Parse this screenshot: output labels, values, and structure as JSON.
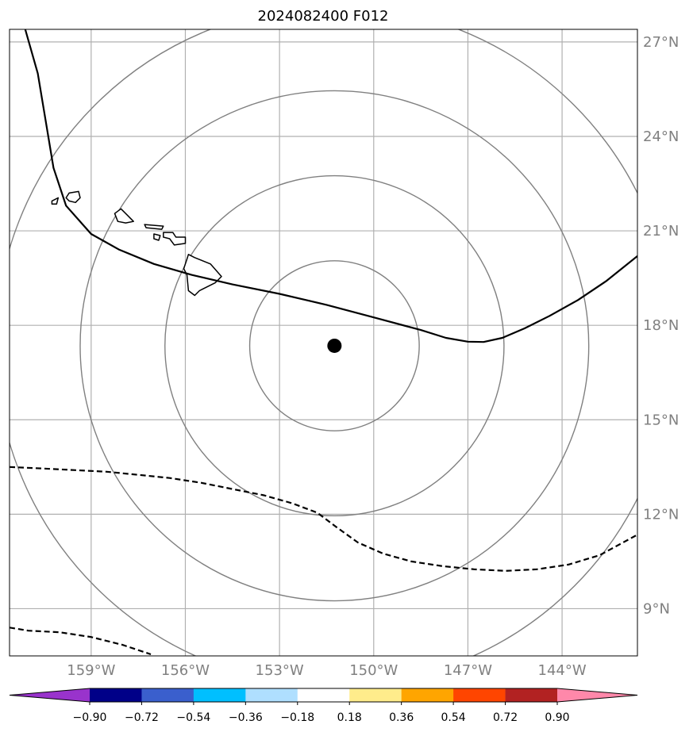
{
  "title": "2024082400 F012",
  "map": {
    "lon_range": [
      -161.6,
      -141.6
    ],
    "lat_range": [
      7.5,
      27.4
    ],
    "lat_labels": [
      "27°N",
      "24°N",
      "21°N",
      "18°N",
      "15°N",
      "12°N",
      "9°N"
    ],
    "lat_values": [
      27,
      24,
      21,
      18,
      15,
      12,
      9
    ],
    "lon_labels": [
      "159°W",
      "156°W",
      "153°W",
      "150°W",
      "147°W",
      "144°W"
    ],
    "lon_values": [
      -159,
      -156,
      -153,
      -150,
      -147,
      -144
    ],
    "storm_center": {
      "lon": -151.25,
      "lat": 17.35
    },
    "range_ring_radii_deg": [
      2.7,
      5.4,
      8.1,
      10.8
    ],
    "colors": {
      "grid": "#b0b0b0",
      "rings": "#808080",
      "coastline": "#000000",
      "contour": "#000000",
      "storm_marker": "#000000"
    },
    "islands": [
      {
        "name": "Niihau",
        "pts": [
          [
            -160.25,
            21.95
          ],
          [
            -160.05,
            22.05
          ],
          [
            -160.1,
            21.85
          ],
          [
            -160.25,
            21.85
          ]
        ]
      },
      {
        "name": "Kauai",
        "pts": [
          [
            -159.7,
            22.2
          ],
          [
            -159.4,
            22.25
          ],
          [
            -159.35,
            22.05
          ],
          [
            -159.5,
            21.9
          ],
          [
            -159.7,
            21.95
          ],
          [
            -159.8,
            22.05
          ]
        ]
      },
      {
        "name": "Oahu",
        "pts": [
          [
            -158.25,
            21.55
          ],
          [
            -158.05,
            21.7
          ],
          [
            -157.85,
            21.5
          ],
          [
            -157.65,
            21.3
          ],
          [
            -157.9,
            21.25
          ],
          [
            -158.15,
            21.3
          ]
        ]
      },
      {
        "name": "Molokai",
        "pts": [
          [
            -157.3,
            21.2
          ],
          [
            -156.7,
            21.15
          ],
          [
            -156.75,
            21.05
          ],
          [
            -157.25,
            21.1
          ]
        ]
      },
      {
        "name": "Lanai",
        "pts": [
          [
            -157.0,
            20.9
          ],
          [
            -156.8,
            20.85
          ],
          [
            -156.85,
            20.7
          ],
          [
            -157.0,
            20.75
          ]
        ]
      },
      {
        "name": "Maui",
        "pts": [
          [
            -156.7,
            20.95
          ],
          [
            -156.4,
            20.95
          ],
          [
            -156.3,
            20.8
          ],
          [
            -156.0,
            20.8
          ],
          [
            -156.0,
            20.6
          ],
          [
            -156.35,
            20.55
          ],
          [
            -156.5,
            20.75
          ],
          [
            -156.7,
            20.8
          ]
        ]
      },
      {
        "name": "Hawaii",
        "pts": [
          [
            -155.9,
            20.25
          ],
          [
            -155.7,
            20.15
          ],
          [
            -155.2,
            19.95
          ],
          [
            -154.85,
            19.55
          ],
          [
            -155.05,
            19.35
          ],
          [
            -155.55,
            19.1
          ],
          [
            -155.7,
            18.95
          ],
          [
            -155.9,
            19.1
          ],
          [
            -155.95,
            19.6
          ],
          [
            -156.05,
            19.8
          ],
          [
            -155.95,
            20.1
          ]
        ]
      }
    ],
    "solid_contour": [
      [
        -161.1,
        27.4
      ],
      [
        -160.7,
        26.0
      ],
      [
        -160.45,
        24.5
      ],
      [
        -160.2,
        23.0
      ],
      [
        -159.8,
        21.8
      ],
      [
        -159.0,
        20.9
      ],
      [
        -158.1,
        20.4
      ],
      [
        -157.0,
        19.95
      ],
      [
        -155.8,
        19.6
      ],
      [
        -154.5,
        19.3
      ],
      [
        -153.0,
        19.0
      ],
      [
        -151.5,
        18.65
      ],
      [
        -150.0,
        18.25
      ],
      [
        -148.5,
        17.85
      ],
      [
        -147.7,
        17.6
      ],
      [
        -147.0,
        17.48
      ],
      [
        -146.5,
        17.47
      ],
      [
        -145.9,
        17.6
      ],
      [
        -145.2,
        17.9
      ],
      [
        -144.4,
        18.3
      ],
      [
        -143.5,
        18.8
      ],
      [
        -142.6,
        19.4
      ],
      [
        -141.6,
        20.2
      ]
    ],
    "dashed_contours": [
      [
        [
          -161.6,
          13.5
        ],
        [
          -160.5,
          13.45
        ],
        [
          -159.5,
          13.4
        ],
        [
          -158.5,
          13.35
        ],
        [
          -157.5,
          13.25
        ],
        [
          -156.5,
          13.15
        ],
        [
          -155.5,
          13.0
        ],
        [
          -154.5,
          12.8
        ],
        [
          -153.5,
          12.6
        ],
        [
          -152.6,
          12.35
        ],
        [
          -151.8,
          12.05
        ],
        [
          -151.2,
          11.6
        ],
        [
          -150.5,
          11.1
        ],
        [
          -149.7,
          10.75
        ],
        [
          -148.8,
          10.5
        ],
        [
          -147.8,
          10.35
        ],
        [
          -146.8,
          10.25
        ],
        [
          -145.8,
          10.2
        ],
        [
          -144.8,
          10.25
        ],
        [
          -143.8,
          10.4
        ],
        [
          -142.8,
          10.7
        ],
        [
          -141.6,
          11.35
        ]
      ],
      [
        [
          -161.6,
          8.4
        ],
        [
          -161.0,
          8.3
        ],
        [
          -160.0,
          8.25
        ],
        [
          -159.0,
          8.1
        ],
        [
          -158.0,
          7.85
        ],
        [
          -157.1,
          7.55
        ]
      ]
    ]
  },
  "colorbar": {
    "colors": [
      "#9933cc",
      "#000088",
      "#3a5fcd",
      "#00bfff",
      "#afdfff",
      "#ffffff",
      "#ffec8b",
      "#ffa500",
      "#ff4500",
      "#b22222",
      "#ff88aa"
    ],
    "tick_labels": [
      "−0.90",
      "−0.72",
      "−0.54",
      "−0.36",
      "−0.18",
      "0.18",
      "0.36",
      "0.54",
      "0.72",
      "0.90"
    ]
  }
}
